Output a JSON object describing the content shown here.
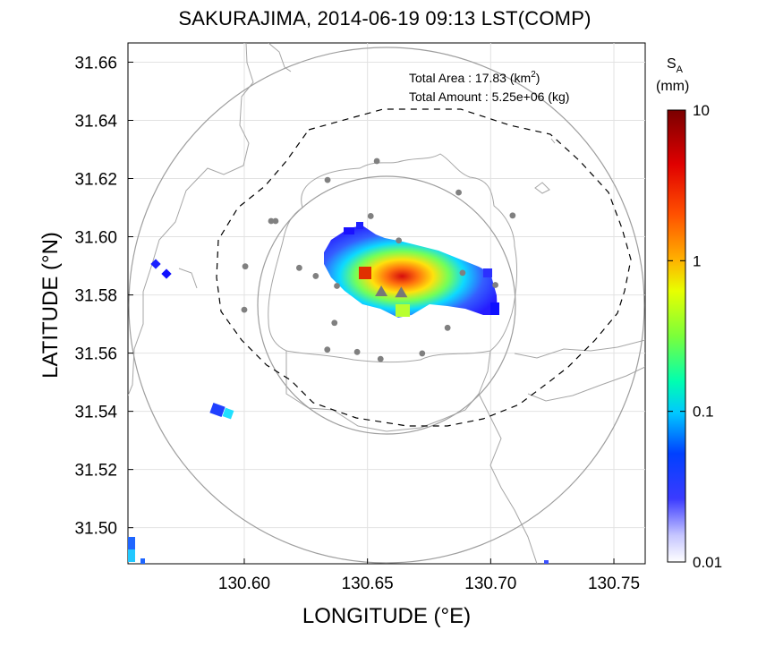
{
  "title": "SAKURAJIMA, 2014-06-19 09:13 LST(COMP)",
  "colors": {
    "coast": "#a6a6a6",
    "grid": "#e2e2e2",
    "ring": "#9e9e9e",
    "dashed": "#000000",
    "station": "#808080",
    "vent": "#777777"
  },
  "info": {
    "area_label": "Total Area   : 17.83 (km",
    "area_sup": "2",
    "area_close": ")",
    "amount_label": "Total Amount : 5.25e+06 (kg)"
  },
  "colorbar": {
    "title_main": "S",
    "title_sub": "A",
    "unit": "(mm)",
    "ticks": [
      "10",
      "1",
      "0.1",
      "0.01"
    ],
    "scale": "log"
  },
  "chart_data": {
    "type": "heatmap",
    "xlabel": "LONGITUDE (°E)",
    "ylabel": "LATITUDE (°N)",
    "xlim": [
      130.5528,
      130.7627
    ],
    "ylim": [
      31.4876,
      31.6666
    ],
    "x_ticks": [
      130.6,
      130.65,
      130.7,
      130.75
    ],
    "x_tick_labels": [
      "130.60",
      "130.65",
      "130.70",
      "130.75"
    ],
    "y_ticks": [
      31.5,
      31.52,
      31.54,
      31.56,
      31.58,
      31.6,
      31.62,
      31.64,
      31.66
    ],
    "y_tick_labels": [
      "31.50",
      "31.52",
      "31.54",
      "31.56",
      "31.58",
      "31.60",
      "31.62",
      "31.64",
      "31.66"
    ],
    "grid": true,
    "center": [
      130.6594,
      31.5776
    ],
    "range_rings": [
      {
        "style": "solid",
        "radius_deg_lon": 0.1054
      },
      {
        "style": "solid",
        "radius_deg_lon": 0.0527
      }
    ],
    "stations": [
      [
        130.6538,
        31.626
      ],
      [
        130.6338,
        31.6195
      ],
      [
        130.687,
        31.6152
      ],
      [
        130.7089,
        31.6073
      ],
      [
        130.6513,
        31.6071
      ],
      [
        130.6127,
        31.6054
      ],
      [
        130.6109,
        31.6054
      ],
      [
        130.6627,
        31.5987
      ],
      [
        130.6004,
        31.5898
      ],
      [
        130.6223,
        31.5893
      ],
      [
        130.629,
        31.5865
      ],
      [
        130.6886,
        31.5876
      ],
      [
        130.7019,
        31.5834
      ],
      [
        130.6376,
        31.5831
      ],
      [
        130.6,
        31.5749
      ],
      [
        130.6366,
        31.5704
      ],
      [
        130.6825,
        31.5687
      ],
      [
        130.6337,
        31.5612
      ],
      [
        130.6458,
        31.5604
      ],
      [
        130.6722,
        31.5599
      ],
      [
        130.6553,
        31.558
      ]
    ],
    "vents": [
      [
        130.6556,
        31.5811
      ],
      [
        130.6637,
        31.5807
      ]
    ],
    "ash_cells_mm": [
      [
        130.6569,
        31.5845,
        3.5
      ],
      [
        130.6519,
        31.5858,
        2.4
      ],
      [
        130.6609,
        31.5821,
        5.0
      ],
      [
        130.6546,
        31.5814,
        1.4
      ],
      [
        130.6499,
        31.5823,
        0.9
      ],
      [
        130.6586,
        31.5883,
        0.8
      ],
      [
        130.6644,
        31.5798,
        0.6
      ],
      [
        130.6662,
        31.5768,
        0.25
      ],
      [
        130.6466,
        31.588,
        0.35
      ],
      [
        130.6453,
        31.5935,
        0.18
      ],
      [
        130.6726,
        31.587,
        0.15
      ],
      [
        130.6839,
        31.5833,
        0.06
      ],
      [
        130.6917,
        31.5815,
        0.05
      ],
      [
        130.6966,
        31.5785,
        0.03
      ],
      [
        130.6409,
        31.5952,
        0.04
      ],
      [
        130.5676,
        31.589,
        0.02
      ],
      [
        130.5927,
        31.5398,
        0.03
      ],
      [
        130.5542,
        31.4936,
        0.08
      ]
    ]
  }
}
